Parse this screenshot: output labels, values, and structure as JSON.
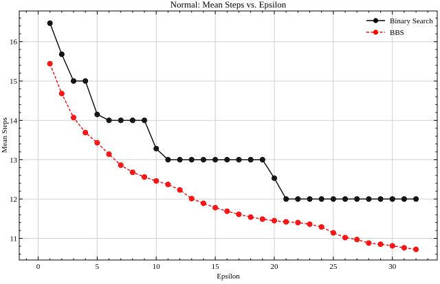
{
  "chart_data": {
    "type": "line",
    "title": "Normal: Mean Steps vs. Epsilon",
    "xlabel": "Epsilon",
    "ylabel": "Mean Steps",
    "xlim": [
      -1.6,
      33.8
    ],
    "ylim": [
      10.45,
      16.78
    ],
    "xticks": [
      0,
      5,
      10,
      15,
      20,
      25,
      30
    ],
    "yticks": [
      11,
      12,
      13,
      14,
      15,
      16
    ],
    "grid": true,
    "legend_position": "upper right",
    "x": [
      1,
      2,
      3,
      4,
      5,
      6,
      7,
      8,
      9,
      10,
      11,
      12,
      13,
      14,
      15,
      16,
      17,
      18,
      19,
      20,
      21,
      22,
      23,
      24,
      25,
      26,
      27,
      28,
      29,
      30,
      31,
      32
    ],
    "series": [
      {
        "name": "Binary Search",
        "color": "#000000",
        "linestyle": "solid",
        "values": [
          16.47,
          15.68,
          15.0,
          15.0,
          14.15,
          14.0,
          14.0,
          14.0,
          14.0,
          13.28,
          13.0,
          13.0,
          13.0,
          13.0,
          13.0,
          13.0,
          13.0,
          13.0,
          13.0,
          12.53,
          12.0,
          12.0,
          12.0,
          12.0,
          12.0,
          12.0,
          12.0,
          12.0,
          12.0,
          12.0,
          12.0,
          12.0
        ]
      },
      {
        "name": "BBS",
        "color": "#ff0000",
        "linestyle": "dashed",
        "values": [
          15.44,
          14.68,
          14.07,
          13.69,
          13.43,
          13.14,
          12.86,
          12.68,
          12.56,
          12.46,
          12.37,
          12.23,
          12.01,
          11.89,
          11.78,
          11.69,
          11.61,
          11.54,
          11.49,
          11.45,
          11.42,
          11.4,
          11.36,
          11.29,
          11.14,
          11.02,
          10.97,
          10.88,
          10.85,
          10.81,
          10.76,
          10.72
        ]
      }
    ]
  }
}
